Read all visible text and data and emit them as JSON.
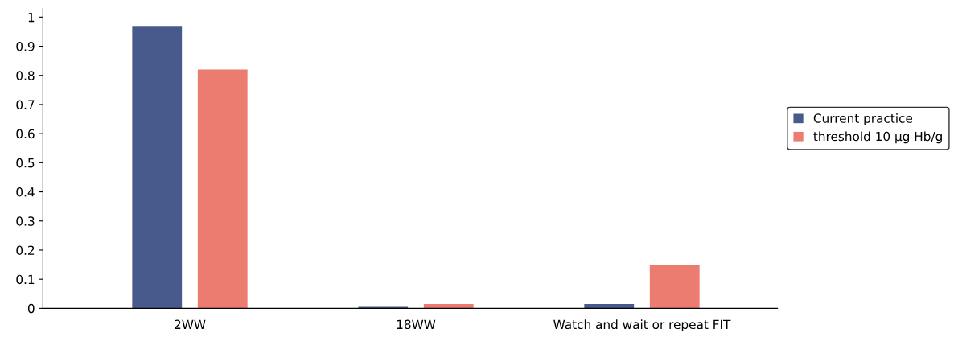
{
  "chart_data": {
    "type": "bar",
    "categories": [
      "2WW",
      "18WW",
      "Watch and wait or repeat FIT"
    ],
    "series": [
      {
        "name": "Current practice",
        "color": "#475a8b",
        "values": [
          0.97,
          0.005,
          0.015
        ]
      },
      {
        "name": "threshold 10 µg Hb/g",
        "color": "#ec7b70",
        "values": [
          0.82,
          0.015,
          0.15
        ]
      }
    ],
    "ylim": [
      0,
      1.03
    ],
    "yticks": [
      0,
      0.1,
      0.2,
      0.3,
      0.4,
      0.5,
      0.6,
      0.7,
      0.8,
      0.9,
      1
    ],
    "grid": false,
    "legend": "right"
  }
}
